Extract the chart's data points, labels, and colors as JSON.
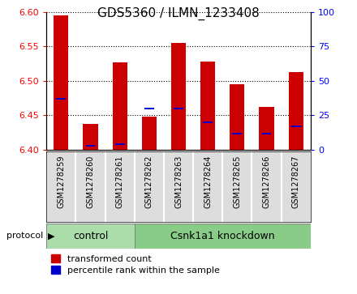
{
  "title": "GDS5360 / ILMN_1233408",
  "samples": [
    "GSM1278259",
    "GSM1278260",
    "GSM1278261",
    "GSM1278262",
    "GSM1278263",
    "GSM1278264",
    "GSM1278265",
    "GSM1278266",
    "GSM1278267"
  ],
  "transformed_counts": [
    6.595,
    6.438,
    6.527,
    6.448,
    6.555,
    6.528,
    6.495,
    6.462,
    6.513
  ],
  "percentile_ranks": [
    37,
    3,
    4,
    30,
    30,
    20,
    12,
    12,
    17
  ],
  "ylim": [
    6.4,
    6.6
  ],
  "y2lim": [
    0,
    100
  ],
  "yticks": [
    6.4,
    6.45,
    6.5,
    6.55,
    6.6
  ],
  "y2ticks": [
    0,
    25,
    50,
    75,
    100
  ],
  "bar_color": "#cc0000",
  "percentile_color": "#0000cc",
  "control_color": "#aaddaa",
  "knockdown_color": "#88cc88",
  "label_bg_color": "#dddddd",
  "control_label": "control",
  "knockdown_label": "Csnk1a1 knockdown",
  "protocol_label": "protocol",
  "legend_red": "transformed count",
  "legend_blue": "percentile rank within the sample",
  "n_control": 3,
  "bar_width": 0.5,
  "figsize": [
    4.4,
    3.63
  ],
  "dpi": 100
}
